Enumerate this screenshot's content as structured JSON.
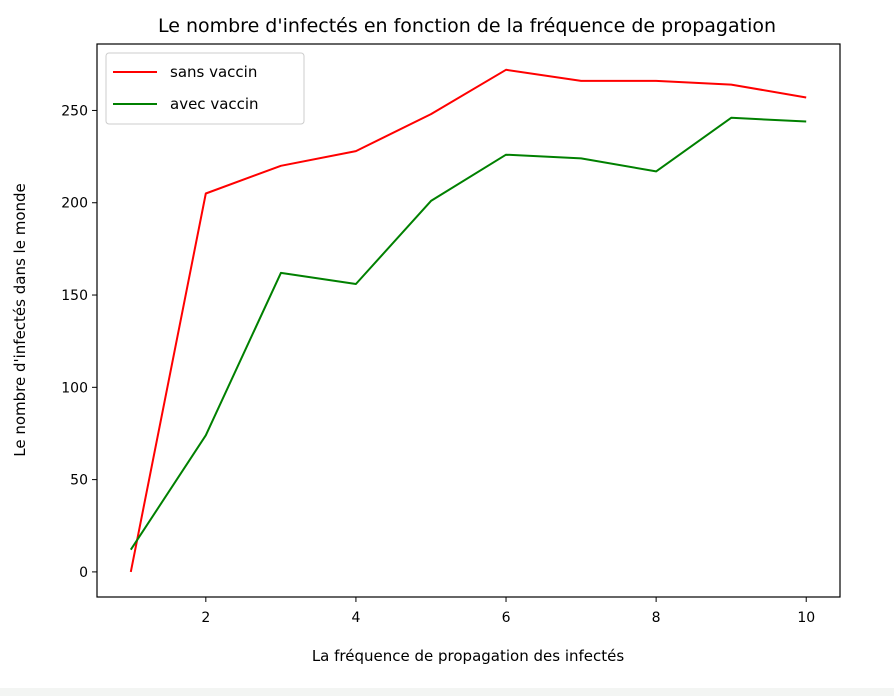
{
  "chart_data": {
    "type": "line",
    "title": "Le nombre d'infectés en fonction de la fréquence de propagation",
    "xlabel": "La fréquence de propagation des infectés",
    "ylabel": "Le nombre d'infectés dans le monde",
    "x": [
      1,
      2,
      3,
      4,
      5,
      6,
      7,
      8,
      9,
      10
    ],
    "xlim": [
      0.55,
      10.45
    ],
    "ylim": [
      -13.6,
      286
    ],
    "xticks": [
      2,
      4,
      6,
      8,
      10
    ],
    "yticks": [
      0,
      50,
      100,
      150,
      200,
      250
    ],
    "grid": false,
    "legend_position": "top-left",
    "series": [
      {
        "name": "sans vaccin",
        "color": "#ff0000",
        "values": [
          0,
          205,
          220,
          228,
          248,
          272,
          266,
          266,
          264,
          257
        ]
      },
      {
        "name": "avec vaccin",
        "color": "#008000",
        "values": [
          12,
          74,
          162,
          156,
          201,
          226,
          224,
          217,
          246,
          244
        ]
      }
    ]
  }
}
